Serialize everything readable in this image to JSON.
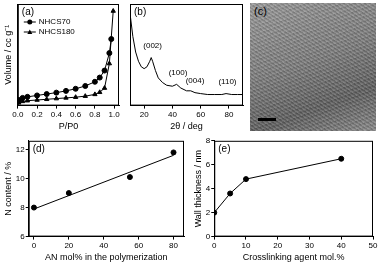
{
  "chart_data": [
    {
      "type": "line",
      "panel_label": "(a)",
      "x_label": "P/P0",
      "y_label": "Volume / cc g⁻¹",
      "xlim": [
        0,
        1.05
      ],
      "xticks": [
        {
          "value": 0,
          "label": "0.0"
        },
        {
          "value": 0.2,
          "label": "0.2"
        },
        {
          "value": 0.4,
          "label": "0.4"
        },
        {
          "value": 0.6,
          "label": "0.6"
        },
        {
          "value": 0.8,
          "label": "0.8"
        },
        {
          "value": 1.0,
          "label": "1.0"
        }
      ],
      "ylim": [
        0,
        1450
      ],
      "tick_labels": "x",
      "legend": "upper left",
      "grid": false,
      "series": [
        {
          "name": "NHCS70",
          "color": "#000000",
          "marker": "circle",
          "line_style": "solid",
          "x": [
            0.01,
            0.05,
            0.1,
            0.2,
            0.3,
            0.4,
            0.5,
            0.6,
            0.7,
            0.8,
            0.85,
            0.9,
            0.95,
            0.97
          ],
          "values": [
            80,
            110,
            125,
            145,
            165,
            185,
            210,
            240,
            280,
            340,
            400,
            500,
            750,
            950
          ]
        },
        {
          "name": "NHCS180",
          "color": "#000000",
          "marker": "triangle",
          "line_style": "solid",
          "x": [
            0.01,
            0.05,
            0.1,
            0.2,
            0.3,
            0.4,
            0.5,
            0.6,
            0.7,
            0.8,
            0.85,
            0.9,
            0.95,
            0.99
          ],
          "values": [
            40,
            60,
            70,
            80,
            90,
            100,
            110,
            120,
            135,
            160,
            190,
            250,
            600,
            1350
          ]
        }
      ]
    },
    {
      "type": "line",
      "panel_label": "(b)",
      "x_label": "2θ / deg",
      "xlim": [
        10,
        90
      ],
      "xticks": [
        20,
        40,
        60,
        80
      ],
      "ylim": [
        0,
        110
      ],
      "tick_labels": "x",
      "grid": false,
      "series": [
        {
          "color": "#000000",
          "marker": "none",
          "line_style": "solid",
          "x": [
            10,
            12,
            14,
            16,
            18,
            20,
            22,
            24,
            25,
            26,
            28,
            30,
            33,
            36,
            40,
            43,
            46,
            50,
            53,
            56,
            60,
            65,
            70,
            75,
            78,
            82,
            86,
            90
          ],
          "values": [
            100,
            75,
            58,
            48,
            42,
            40,
            42,
            48,
            52,
            48,
            38,
            30,
            25,
            22,
            21,
            23,
            19,
            16,
            16,
            14,
            13,
            12,
            12,
            12,
            13,
            12,
            12,
            12
          ]
        }
      ],
      "annotations": [
        {
          "text": "(002)",
          "x": 26,
          "y": 60
        },
        {
          "text": "(100)",
          "x": 44,
          "y": 31
        },
        {
          "text": "(004)",
          "x": 56,
          "y": 23
        },
        {
          "text": "(110)",
          "x": 79,
          "y": 21
        }
      ]
    },
    {
      "type": "scatter",
      "panel_label": "(d)",
      "x_label": "AN mol% in the polymerization",
      "y_label": "N content / %",
      "xlim": [
        -3,
        86
      ],
      "xticks": [
        0,
        20,
        40,
        60,
        80
      ],
      "ylim": [
        6,
        12.6
      ],
      "yticks": [
        6,
        8,
        10,
        12
      ],
      "grid": false,
      "series": [
        {
          "color": "#000000",
          "marker": "none",
          "line_style": "solid",
          "x": [
            0,
            80
          ],
          "values": [
            7.9,
            11.6
          ]
        },
        {
          "color": "#000000",
          "marker": "circle",
          "line_style": "none",
          "x": [
            0,
            20,
            55,
            80
          ],
          "values": [
            8.0,
            9.0,
            10.1,
            11.8
          ]
        }
      ]
    },
    {
      "type": "line",
      "panel_label": "(e)",
      "x_label": "Crosslinking agent mol.%",
      "y_label": "Wall thickness / nm",
      "xlim": [
        0,
        50
      ],
      "xticks": [
        0,
        10,
        20,
        30,
        40,
        50
      ],
      "ylim": [
        0,
        8
      ],
      "yticks": [
        0,
        2,
        4,
        6,
        8
      ],
      "grid": false,
      "series": [
        {
          "color": "#000000",
          "marker": "circle",
          "line_style": "solid",
          "x": [
            0,
            5,
            10,
            40
          ],
          "values": [
            2.0,
            3.6,
            4.8,
            6.5
          ]
        }
      ]
    }
  ],
  "image_panel": {
    "label": "(c)"
  }
}
